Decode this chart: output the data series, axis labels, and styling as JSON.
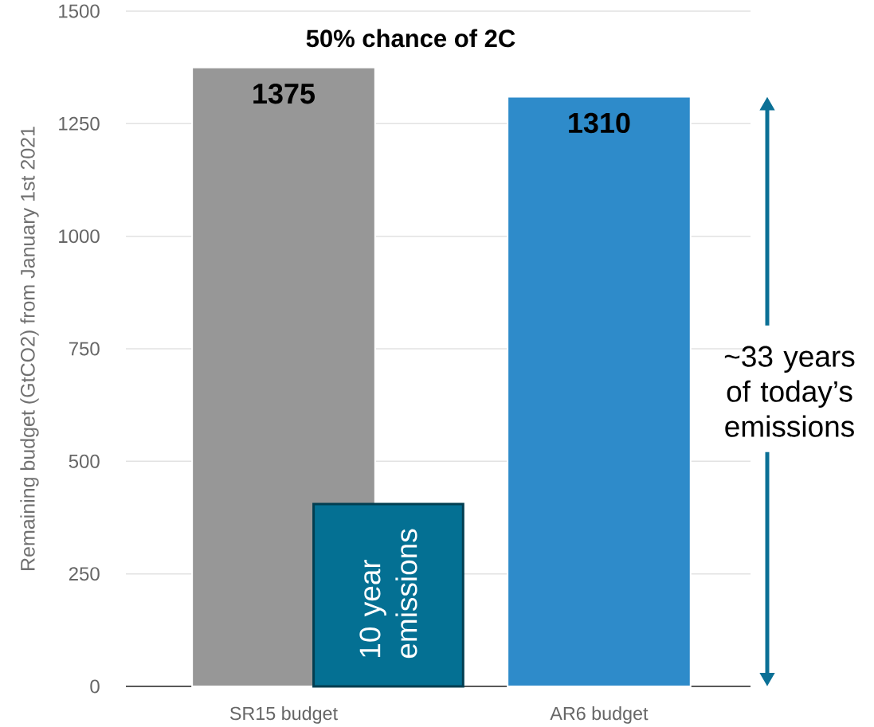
{
  "chart_data": {
    "type": "bar",
    "title": "50% chance of 2C",
    "ylabel": "Remaining budget (GtCO2) from January 1st 2021",
    "categories": [
      "SR15 budget",
      "AR6 budget"
    ],
    "series": [
      {
        "colors": [
          "#979797",
          "#2e8bca"
        ],
        "values": [
          1375,
          1310
        ],
        "value_labels": [
          "1375",
          "1310"
        ]
      },
      {
        "name": "10 year emissions",
        "color": "#047093",
        "values": [
          405,
          null
        ]
      }
    ],
    "ylim": [
      0,
      1500
    ],
    "yticks": [
      0,
      250,
      500,
      750,
      1000,
      1250,
      1500
    ],
    "grid": "y",
    "annotations": [
      "~33 years of today’s emissions"
    ]
  }
}
